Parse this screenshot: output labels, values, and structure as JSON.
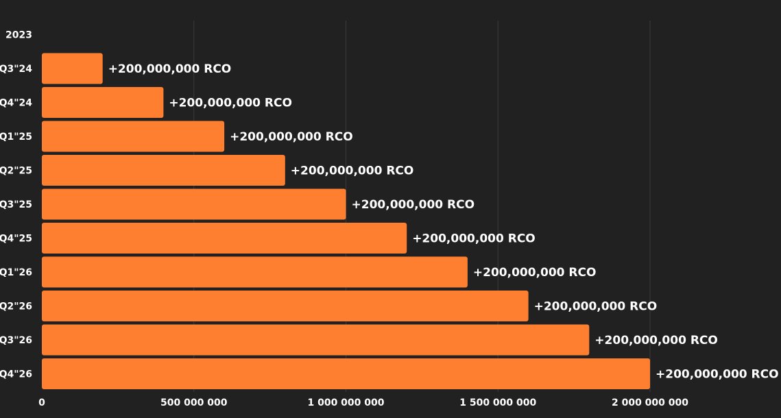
{
  "chart_data": {
    "type": "bar",
    "orientation": "horizontal",
    "categories": [
      "2023",
      "Q3\"24",
      "Q4\"24",
      "Q1\"25",
      "Q2\"25",
      "Q3\"25",
      "Q4\"25",
      "Q1\"26",
      "Q2\"26",
      "Q3\"26",
      "Q4\"26"
    ],
    "values": [
      0,
      200000000,
      400000000,
      600000000,
      800000000,
      1000000000,
      1200000000,
      1400000000,
      1600000000,
      1800000000,
      2000000000
    ],
    "data_labels": [
      "",
      "+200,000,000 RCO",
      "+200,000,000 RCO",
      "+200,000,000 RCO",
      "+200,000,000 RCO",
      "+200,000,000 RCO",
      "+200,000,000 RCO",
      "+200,000,000 RCO",
      "+200,000,000 RCO",
      "+200,000,000 RCO",
      "+200,000,000 RCO"
    ],
    "x_ticks": [
      {
        "value": 0,
        "label": "0"
      },
      {
        "value": 500000000,
        "label": "500 000 000"
      },
      {
        "value": 1000000000,
        "label": "1 000 000 000"
      },
      {
        "value": 1500000000,
        "label": "1 500 000 000"
      },
      {
        "value": 2000000000,
        "label": "2 000 000 000"
      }
    ],
    "xlim": [
      0,
      2000000000
    ],
    "title": "",
    "xlabel": "",
    "ylabel": "",
    "grid": true,
    "legend": "none",
    "colors": {
      "background": "#212121",
      "bar": "#FF7F30",
      "grid": "#3a3a3a",
      "text": "#ffffff"
    }
  }
}
